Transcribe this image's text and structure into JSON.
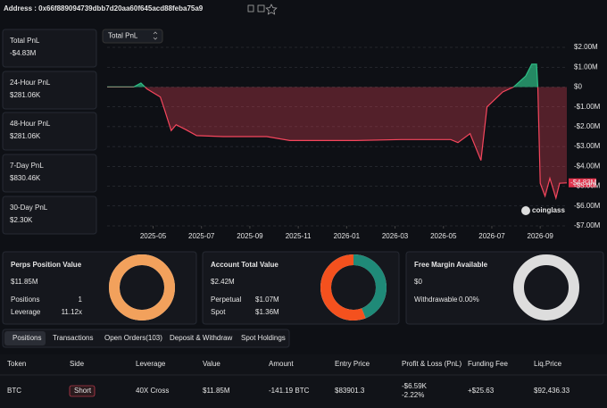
{
  "header": {
    "title": "Address : 0x66f889094739dbb7d20aa60f645acd88feba75a9"
  },
  "stats": [
    {
      "label": "Total PnL",
      "value": "-$4.83M"
    },
    {
      "label": "24-Hour PnL",
      "value": "$281.06K"
    },
    {
      "label": "48-Hour PnL",
      "value": "$281.06K"
    },
    {
      "label": "7-Day PnL",
      "value": "$830.46K"
    },
    {
      "label": "30-Day PnL",
      "value": "$2.30K"
    }
  ],
  "chart": {
    "type": "line",
    "selector": "Total PnL",
    "watermark": "coinglass",
    "current_label": "-$4.83M",
    "x": [
      3.1,
      4.2,
      4.5,
      4.75,
      5.3,
      5.5,
      5.75,
      5.95,
      6.35,
      6.8,
      7.9,
      9.7,
      10.65,
      13.4,
      15.25,
      17.3,
      17.6,
      18.1,
      18.55,
      18.8,
      19.45,
      19.9,
      20.4,
      20.65,
      20.85,
      20.9,
      21.0,
      21.2,
      21.4,
      21.65,
      21.8,
      22.1
    ],
    "values": [
      0,
      0,
      200000,
      -100000,
      -500000,
      -1250000,
      -2200000,
      -1900000,
      -2150000,
      -2450000,
      -2500000,
      -2500000,
      -2700000,
      -2700000,
      -2650000,
      -2650000,
      -2800000,
      -2350000,
      -3700000,
      -1000000,
      -250000,
      0,
      550000,
      1150000,
      1150000,
      0,
      -4850000,
      -5500000,
      -4600000,
      -5600000,
      -4850000,
      -4830000
    ],
    "xlim": [
      3.1,
      22.1
    ],
    "xticks": [
      {
        "value": 5,
        "label": "2025-05"
      },
      {
        "value": 7,
        "label": "2025-07"
      },
      {
        "value": 9,
        "label": "2025-09"
      },
      {
        "value": 11,
        "label": "2025-11"
      },
      {
        "value": 13,
        "label": "2026-01"
      },
      {
        "value": 15,
        "label": "2026-03"
      },
      {
        "value": 17,
        "label": "2026-05"
      },
      {
        "value": 19,
        "label": "2026-07"
      },
      {
        "value": 21,
        "label": "2026-09"
      }
    ],
    "ylim": [
      -7000000,
      2000000
    ],
    "yticks": [
      {
        "value": 2000000,
        "label": "$2.00M"
      },
      {
        "value": 1000000,
        "label": "$1.00M"
      },
      {
        "value": 0,
        "label": "$0"
      },
      {
        "value": -1000000,
        "label": "-$1.00M"
      },
      {
        "value": -2000000,
        "label": "-$2.00M"
      },
      {
        "value": -3000000,
        "label": "-$3.00M"
      },
      {
        "value": -4000000,
        "label": "-$4.00M"
      },
      {
        "value": -5000000,
        "label": "-$5.00M"
      },
      {
        "value": -6000000,
        "label": "-$6.00M"
      },
      {
        "value": -7000000,
        "label": "-$7.00M"
      }
    ],
    "grid": true,
    "color_positive": "#2ebd85",
    "color_negative": "#f6465d"
  },
  "panels": [
    {
      "title": "Perps Position Value",
      "value": "$11.85M",
      "rows": [
        {
          "label": "Positions",
          "value": "1"
        },
        {
          "label": "Leverage",
          "value": "11.12x"
        }
      ],
      "segments": [
        {
          "value": 11850000,
          "color": "#f2a15c"
        }
      ]
    },
    {
      "title": "Account Total Value",
      "value": "$2.42M",
      "rows": [
        {
          "label": "Perpetual",
          "value": "$1.07M"
        },
        {
          "label": "Spot",
          "value": "$1.36M"
        }
      ],
      "segments": [
        {
          "value": 1070000,
          "color": "#1f8a78"
        },
        {
          "value": 1360000,
          "color": "#f4511e"
        }
      ]
    },
    {
      "title": "Free Margin Available",
      "value": "$0",
      "rows": [
        {
          "label": "Withdrawable",
          "value": "0.00%"
        }
      ],
      "segments": []
    }
  ],
  "tabs": [
    "Positions",
    "Transactions",
    "Open Orders(103)",
    "Deposit & Withdraw",
    "Spot Holdings"
  ],
  "table": {
    "headers": [
      "Token",
      "Side",
      "Leverage",
      "Value",
      "Amount",
      "Entry Price",
      "Profit & Loss (PnL)",
      "Funding Fee",
      "Liq.Price"
    ],
    "rows": [
      [
        "BTC",
        "Short",
        "40X Cross",
        "$11.85M",
        "-141.19 BTC",
        "$83901.3",
        [
          "-$6.59K",
          "-2.22%"
        ],
        "+$25.63",
        "$92,436.33"
      ]
    ]
  }
}
